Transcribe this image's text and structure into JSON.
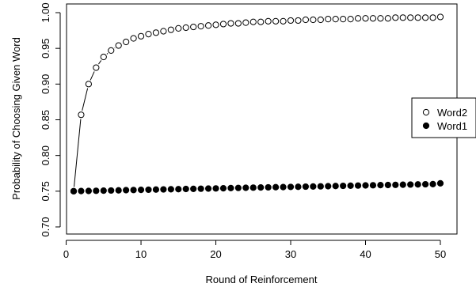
{
  "chart_data": {
    "type": "scatter",
    "title": "",
    "xlabel": "Round of Reinforcement",
    "ylabel": "Probability of Choosing Given Word",
    "xlim": [
      1,
      50
    ],
    "ylim": [
      0.7,
      1.0
    ],
    "xticks": [
      0,
      10,
      20,
      30,
      40,
      50
    ],
    "yticks": [
      0.7,
      0.75,
      0.8,
      0.85,
      0.9,
      0.95,
      1.0
    ],
    "ytick_labels": [
      "0.70",
      "0.75",
      "0.80",
      "0.85",
      "0.90",
      "0.95",
      "1.00"
    ],
    "grid": false,
    "legend_position": "right",
    "legend": [
      {
        "label": "Word2",
        "marker": "open-circle"
      },
      {
        "label": "Word1",
        "marker": "filled-circle"
      }
    ],
    "series": [
      {
        "name": "Word2",
        "marker": "open-circle",
        "color": "#000000",
        "x": [
          1,
          2,
          3,
          4,
          5,
          6,
          7,
          8,
          9,
          10,
          11,
          12,
          13,
          14,
          15,
          16,
          17,
          18,
          19,
          20,
          21,
          22,
          23,
          24,
          25,
          26,
          27,
          28,
          29,
          30,
          31,
          32,
          33,
          34,
          35,
          36,
          37,
          38,
          39,
          40,
          41,
          42,
          43,
          44,
          45,
          46,
          47,
          48,
          49,
          50
        ],
        "y": [
          0.75,
          0.857,
          0.9,
          0.923,
          0.938,
          0.947,
          0.954,
          0.959,
          0.964,
          0.967,
          0.97,
          0.972,
          0.974,
          0.976,
          0.978,
          0.979,
          0.98,
          0.981,
          0.982,
          0.983,
          0.984,
          0.985,
          0.985,
          0.986,
          0.987,
          0.987,
          0.988,
          0.988,
          0.988,
          0.989,
          0.989,
          0.99,
          0.99,
          0.99,
          0.991,
          0.991,
          0.991,
          0.991,
          0.992,
          0.992,
          0.992,
          0.992,
          0.992,
          0.993,
          0.993,
          0.993,
          0.993,
          0.993,
          0.993,
          0.994
        ]
      },
      {
        "name": "Word1",
        "marker": "filled-circle",
        "color": "#000000",
        "x": [
          1,
          2,
          3,
          4,
          5,
          6,
          7,
          8,
          9,
          10,
          11,
          12,
          13,
          14,
          15,
          16,
          17,
          18,
          19,
          20,
          21,
          22,
          23,
          24,
          25,
          26,
          27,
          28,
          29,
          30,
          31,
          32,
          33,
          34,
          35,
          36,
          37,
          38,
          39,
          40,
          41,
          42,
          43,
          44,
          45,
          46,
          47,
          48,
          49,
          50
        ],
        "y": [
          0.75,
          0.7502,
          0.7504,
          0.7506,
          0.7508,
          0.751,
          0.7512,
          0.7515,
          0.7517,
          0.7519,
          0.7521,
          0.7523,
          0.7525,
          0.7527,
          0.7529,
          0.7531,
          0.7533,
          0.7535,
          0.7537,
          0.7539,
          0.7541,
          0.7544,
          0.7546,
          0.7548,
          0.755,
          0.7552,
          0.7554,
          0.7556,
          0.7558,
          0.756,
          0.7562,
          0.7564,
          0.7566,
          0.7568,
          0.757,
          0.7573,
          0.7575,
          0.7577,
          0.7579,
          0.7581,
          0.7583,
          0.7585,
          0.7587,
          0.7589,
          0.7591,
          0.7593,
          0.7595,
          0.7597,
          0.7599,
          0.761
        ]
      }
    ]
  }
}
